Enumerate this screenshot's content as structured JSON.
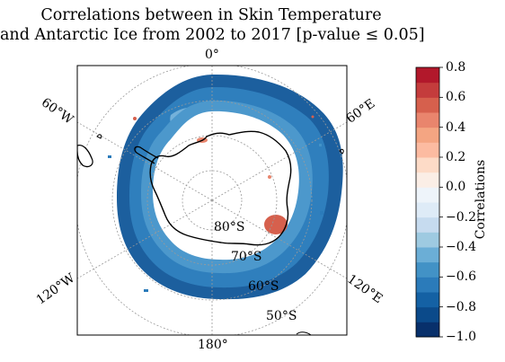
{
  "title": {
    "line1": "Correlations between in Skin Temperature",
    "line2": "and Antarctic Ice from 2002 to 2017 [p-value ≤ 0.05]"
  },
  "map": {
    "projection": "south polar stereographic",
    "longitude_labels": [
      "0°",
      "60°E",
      "120°E",
      "180°",
      "120°W",
      "60°W"
    ],
    "latitude_labels": [
      "80°S",
      "70°S",
      "60°S",
      "50°S"
    ],
    "gridlines": true,
    "coastline_color": "#000000"
  },
  "colorbar": {
    "label": "Correlations",
    "ticks": [
      "0.8",
      "0.6",
      "0.4",
      "0.2",
      "0.0",
      "−0.2",
      "−0.4",
      "−0.6",
      "−0.8",
      "−1.0"
    ],
    "range": [
      -1.0,
      0.8
    ],
    "colors": [
      "#08306b",
      "#0b4a8a",
      "#1461a4",
      "#2b7bba",
      "#4292c6",
      "#6baed6",
      "#9ecae1",
      "#c6dbef",
      "#deebf7",
      "#eef4fa",
      "#fbeee6",
      "#fddbc7",
      "#fcbba1",
      "#f4a582",
      "#e9856d",
      "#d6604d",
      "#c43c3c",
      "#b2182b"
    ]
  }
}
